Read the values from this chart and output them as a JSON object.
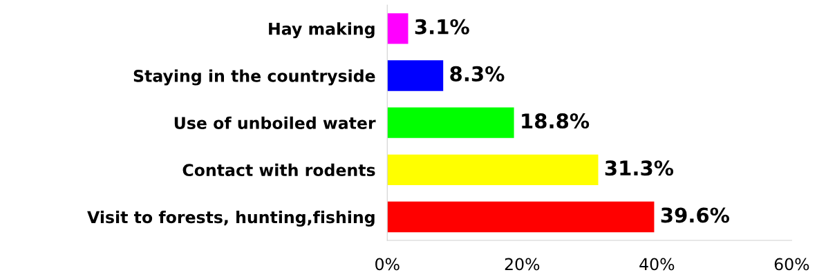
{
  "chart_data": {
    "type": "bar",
    "orientation": "horizontal",
    "categories": [
      "Hay making",
      "Staying in the countryside",
      "Use of unboiled water",
      "Contact with rodents",
      "Visit to forests, hunting,fishing"
    ],
    "values": [
      3.1,
      8.3,
      18.8,
      31.3,
      39.6
    ],
    "colors": [
      "#ff00ff",
      "#0000ff",
      "#00ff00",
      "#ffff00",
      "#ff0000"
    ],
    "value_labels": [
      "3.1%",
      "8.3%",
      "18.8%",
      "31.3%",
      "39.6%"
    ],
    "xlim": [
      0,
      60
    ],
    "xticks": [
      {
        "value": 0,
        "label": "0%"
      },
      {
        "value": 20,
        "label": "20%"
      },
      {
        "value": 40,
        "label": "40%"
      },
      {
        "value": 60,
        "label": "60%"
      }
    ],
    "grid": false,
    "legend": false
  }
}
